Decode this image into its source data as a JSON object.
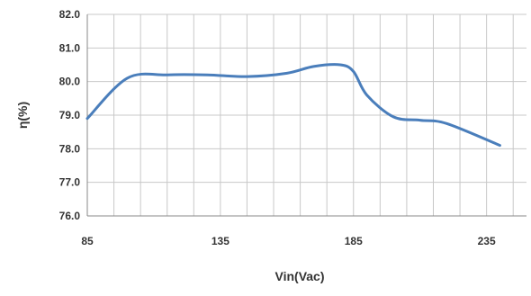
{
  "chart_data": {
    "type": "line",
    "title": "",
    "xlabel": "Vin(Vac)",
    "ylabel": "η(%)",
    "xlim": [
      85,
      250
    ],
    "ylim": [
      76.0,
      82.0
    ],
    "x_ticks": [
      85,
      135,
      185,
      235
    ],
    "x_tick_labels": [
      "85",
      "135",
      "185",
      "235"
    ],
    "x_minor_step": 10,
    "y_ticks": [
      76,
      77,
      78,
      79,
      80,
      81,
      82
    ],
    "y_tick_labels": [
      "76.0",
      "77.0",
      "78.0",
      "79.0",
      "80.0",
      "81.0",
      "82.0"
    ],
    "grid": true,
    "legend": "none",
    "series": [
      {
        "color": "#4a7ebb",
        "x": [
          85,
          100,
          115,
          130,
          145,
          160,
          170,
          180,
          185,
          190,
          200,
          210,
          220,
          240
        ],
        "y": [
          78.9,
          80.1,
          80.2,
          80.2,
          80.15,
          80.25,
          80.45,
          80.5,
          80.3,
          79.6,
          78.95,
          78.85,
          78.75,
          78.1
        ]
      }
    ],
    "colors": {
      "grid": "#c8c8c8",
      "axis": "#888888",
      "line": "#4a7ebb"
    }
  }
}
